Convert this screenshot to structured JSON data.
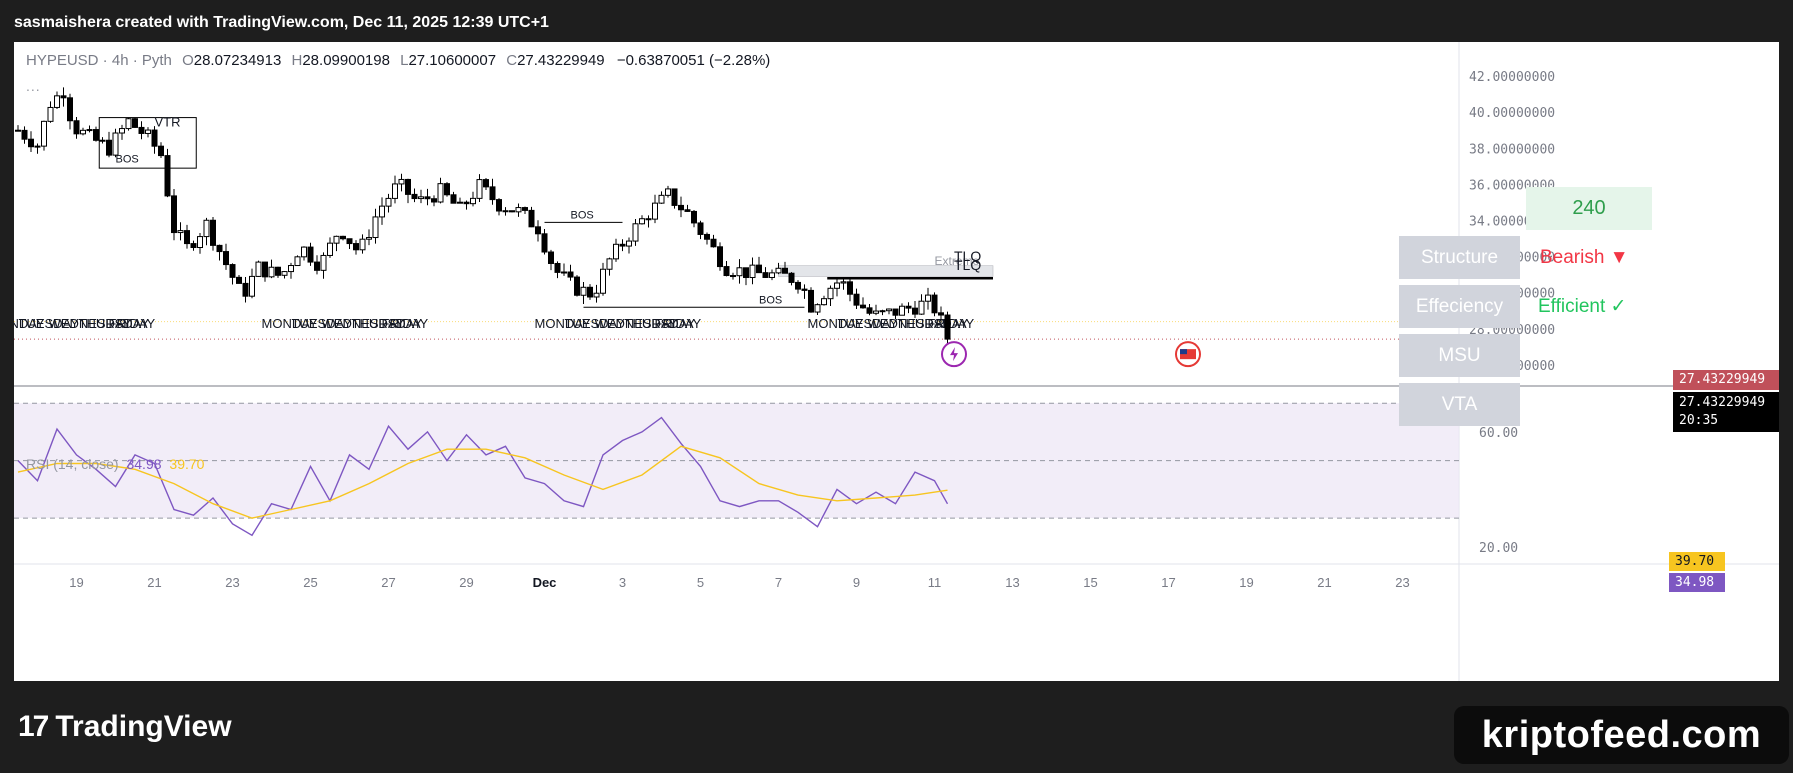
{
  "header": {
    "attribution": "sasmaishera created with TradingView.com, Dec 11, 2025 12:39 UTC+1"
  },
  "legend": {
    "symbol": "HYPEUSD · 4h · Pyth",
    "open_label": "O",
    "open": "28.07234913",
    "high_label": "H",
    "high": "28.09900198",
    "low_label": "L",
    "low": "27.10600007",
    "close_label": "C",
    "close": "27.43229949",
    "change": "−0.63870051 (−2.28%)",
    "more": "..."
  },
  "rsi_legend": {
    "name": "RSI (14, close)",
    "rsi_value": "34.98",
    "ma_value": "39.70"
  },
  "panel": {
    "timeframe": "240",
    "rows": [
      {
        "label": "Structure",
        "value": "Bearish ▼",
        "value_color": "#f23645"
      },
      {
        "label": "Effeciency",
        "value": "Efficient ✓",
        "value_color": "#22c55e"
      },
      {
        "label": "MSU",
        "value": ""
      },
      {
        "label": "VTA",
        "value": ""
      }
    ]
  },
  "price_tags": {
    "last": "27.43229949",
    "current": "27.43229949",
    "countdown": "20:35",
    "rsi_ma": "39.70",
    "rsi": "34.98"
  },
  "annotations": {
    "vtr": "VTR",
    "bos": "BOS",
    "tlq": "TLQ",
    "extreme": "Extreme",
    "day_labels": [
      "MONDAY",
      "TUESDAY",
      "WEDNESDAY",
      "THURSDAY",
      "FRIDAY"
    ]
  },
  "colors": {
    "up": "#ffffff",
    "down": "#000000",
    "rsi_line": "#7e57c2",
    "rsi_ma": "#f7c520",
    "bearish": "#f23645",
    "efficient": "#22c55e",
    "price_tag": "#c0505a"
  },
  "footer": {
    "brand": "TradingView",
    "watermark": "kriptofeed.com"
  },
  "chart_data": [
    {
      "type": "candlestick",
      "title": "HYPEUSD · 4h · Pyth",
      "y_axis_labels": [
        "42.00000000",
        "40.00000000",
        "38.00000000",
        "36.00000000",
        "34.00000000",
        "32.00000000",
        "30.00000000",
        "28.00000000",
        "26.00000000"
      ],
      "ylim": [
        25.5,
        43
      ],
      "x_axis_labels": [
        "19",
        "21",
        "23",
        "25",
        "27",
        "29",
        "Dec",
        "3",
        "5",
        "7",
        "9",
        "11",
        "13",
        "15",
        "17",
        "19",
        "21",
        "23"
      ],
      "x_label_dates": [
        "2025-11-19",
        "2025-11-21",
        "2025-11-23",
        "2025-11-25",
        "2025-11-27",
        "2025-11-29",
        "2025-12-01",
        "2025-12-03",
        "2025-12-05",
        "2025-12-07",
        "2025-12-09",
        "2025-12-11",
        "2025-12-13",
        "2025-12-15",
        "2025-12-17",
        "2025-12-19",
        "2025-12-21",
        "2025-12-23"
      ],
      "x_start": "2025-11-17T12:00",
      "close_path": [
        [
          "2025-11-17T12:00",
          39.0
        ],
        [
          "2025-11-18T00:00",
          38.2
        ],
        [
          "2025-11-18T08:00",
          40.5
        ],
        [
          "2025-11-18T16:00",
          41.2
        ],
        [
          "2025-11-18T22:00",
          39.2
        ],
        [
          "2025-11-19T08:00",
          38.6
        ],
        [
          "2025-11-19T20:00",
          38.0
        ],
        [
          "2025-11-20T08:00",
          39.5
        ],
        [
          "2025-11-20T20:00",
          38.6
        ],
        [
          "2025-11-21T06:00",
          37.4
        ],
        [
          "2025-11-21T10:00",
          33.8
        ],
        [
          "2025-11-21T20:00",
          32.5
        ],
        [
          "2025-11-22T08:00",
          33.8
        ],
        [
          "2025-11-22T20:00",
          31.6
        ],
        [
          "2025-11-23T06:00",
          29.8
        ],
        [
          "2025-11-23T16:00",
          31.4
        ],
        [
          "2025-11-24T06:00",
          30.9
        ],
        [
          "2025-11-24T18:00",
          32.6
        ],
        [
          "2025-11-25T06:00",
          31.5
        ],
        [
          "2025-11-25T18:00",
          33.6
        ],
        [
          "2025-11-26T06:00",
          32.2
        ],
        [
          "2025-11-26T18:00",
          34.6
        ],
        [
          "2025-11-27T06:00",
          36.0
        ],
        [
          "2025-11-27T18:00",
          35.0
        ],
        [
          "2025-11-28T08:00",
          35.6
        ],
        [
          "2025-11-28T20:00",
          34.6
        ],
        [
          "2025-11-29T08:00",
          35.9
        ],
        [
          "2025-11-29T20:00",
          34.9
        ],
        [
          "2025-11-30T08:00",
          34.5
        ],
        [
          "2025-11-30T20:00",
          33.6
        ],
        [
          "2025-12-01T06:00",
          31.3
        ],
        [
          "2025-12-01T18:00",
          30.3
        ],
        [
          "2025-12-02T06:00",
          29.9
        ],
        [
          "2025-12-02T16:00",
          31.8
        ],
        [
          "2025-12-03T04:00",
          33.2
        ],
        [
          "2025-12-03T16:00",
          34.4
        ],
        [
          "2025-12-04T04:00",
          35.4
        ],
        [
          "2025-12-04T16:00",
          34.4
        ],
        [
          "2025-12-05T04:00",
          32.9
        ],
        [
          "2025-12-05T16:00",
          31.4
        ],
        [
          "2025-12-06T06:00",
          31.1
        ],
        [
          "2025-12-06T18:00",
          31.0
        ],
        [
          "2025-12-07T06:00",
          30.9
        ],
        [
          "2025-12-07T14:00",
          30.5
        ],
        [
          "2025-12-07T20:00",
          29.3
        ],
        [
          "2025-12-08T06:00",
          30.2
        ],
        [
          "2025-12-08T14:00",
          30.7
        ],
        [
          "2025-12-08T22:00",
          29.7
        ],
        [
          "2025-12-09T10:00",
          28.7
        ],
        [
          "2025-12-09T22:00",
          28.9
        ],
        [
          "2025-12-10T10:00",
          29.2
        ],
        [
          "2025-12-10T22:00",
          29.5
        ],
        [
          "2025-12-11T04:00",
          28.4
        ],
        [
          "2025-12-11T08:00",
          27.43
        ]
      ],
      "last_close": 27.43229949
    },
    {
      "type": "line",
      "title": "RSI (14, close)",
      "y_axis_labels": [
        "60.00",
        "20.00"
      ],
      "ylim": [
        14,
        76
      ],
      "series": [
        {
          "name": "RSI",
          "color": "#7e57c2",
          "points": [
            [
              "2025-11-17T12:00",
              50
            ],
            [
              "2025-11-18T00:00",
              43
            ],
            [
              "2025-11-18T12:00",
              61
            ],
            [
              "2025-11-19T00:00",
              52
            ],
            [
              "2025-11-19T12:00",
              47
            ],
            [
              "2025-11-20T00:00",
              41
            ],
            [
              "2025-11-20T12:00",
              52
            ],
            [
              "2025-11-21T00:00",
              49
            ],
            [
              "2025-11-21T12:00",
              33
            ],
            [
              "2025-11-22T00:00",
              31
            ],
            [
              "2025-11-22T12:00",
              37
            ],
            [
              "2025-11-23T00:00",
              28
            ],
            [
              "2025-11-23T12:00",
              24
            ],
            [
              "2025-11-24T00:00",
              35
            ],
            [
              "2025-11-24T12:00",
              33
            ],
            [
              "2025-11-25T00:00",
              48
            ],
            [
              "2025-11-25T12:00",
              36
            ],
            [
              "2025-11-26T00:00",
              52
            ],
            [
              "2025-11-26T12:00",
              47
            ],
            [
              "2025-11-27T00:00",
              62
            ],
            [
              "2025-11-27T12:00",
              54
            ],
            [
              "2025-11-28T00:00",
              60
            ],
            [
              "2025-11-28T12:00",
              50
            ],
            [
              "2025-11-29T00:00",
              59
            ],
            [
              "2025-11-29T12:00",
              52
            ],
            [
              "2025-11-30T00:00",
              55
            ],
            [
              "2025-11-30T12:00",
              44
            ],
            [
              "2025-12-01T00:00",
              42
            ],
            [
              "2025-12-01T12:00",
              36
            ],
            [
              "2025-12-02T00:00",
              34
            ],
            [
              "2025-12-02T12:00",
              52
            ],
            [
              "2025-12-03T00:00",
              57
            ],
            [
              "2025-12-03T12:00",
              60
            ],
            [
              "2025-12-04T00:00",
              65
            ],
            [
              "2025-12-04T12:00",
              56
            ],
            [
              "2025-12-05T00:00",
              48
            ],
            [
              "2025-12-05T12:00",
              36
            ],
            [
              "2025-12-06T00:00",
              34
            ],
            [
              "2025-12-06T12:00",
              36
            ],
            [
              "2025-12-07T00:00",
              36
            ],
            [
              "2025-12-07T12:00",
              32
            ],
            [
              "2025-12-08T00:00",
              27
            ],
            [
              "2025-12-08T12:00",
              40
            ],
            [
              "2025-12-09T00:00",
              35
            ],
            [
              "2025-12-09T12:00",
              39
            ],
            [
              "2025-12-10T00:00",
              35
            ],
            [
              "2025-12-10T12:00",
              46
            ],
            [
              "2025-12-11T00:00",
              43
            ],
            [
              "2025-12-11T08:00",
              34.98
            ]
          ]
        },
        {
          "name": "RSI-based MA",
          "color": "#f7c520",
          "points": [
            [
              "2025-11-17T12:00",
              46
            ],
            [
              "2025-11-18T12:00",
              49
            ],
            [
              "2025-11-19T12:00",
              49
            ],
            [
              "2025-11-20T12:00",
              47
            ],
            [
              "2025-11-21T12:00",
              42
            ],
            [
              "2025-11-22T12:00",
              35
            ],
            [
              "2025-11-23T12:00",
              30
            ],
            [
              "2025-11-24T12:00",
              33
            ],
            [
              "2025-11-25T12:00",
              36
            ],
            [
              "2025-11-26T12:00",
              42
            ],
            [
              "2025-11-27T12:00",
              49
            ],
            [
              "2025-11-28T12:00",
              54
            ],
            [
              "2025-11-29T12:00",
              54
            ],
            [
              "2025-11-30T12:00",
              51
            ],
            [
              "2025-12-01T12:00",
              45
            ],
            [
              "2025-12-02T12:00",
              40
            ],
            [
              "2025-12-03T12:00",
              45
            ],
            [
              "2025-12-04T12:00",
              55
            ],
            [
              "2025-12-05T12:00",
              51
            ],
            [
              "2025-12-06T12:00",
              42
            ],
            [
              "2025-12-07T12:00",
              38
            ],
            [
              "2025-12-08T12:00",
              36
            ],
            [
              "2025-12-09T12:00",
              37
            ],
            [
              "2025-12-10T12:00",
              38
            ],
            [
              "2025-12-11T08:00",
              39.7
            ]
          ]
        }
      ]
    }
  ]
}
